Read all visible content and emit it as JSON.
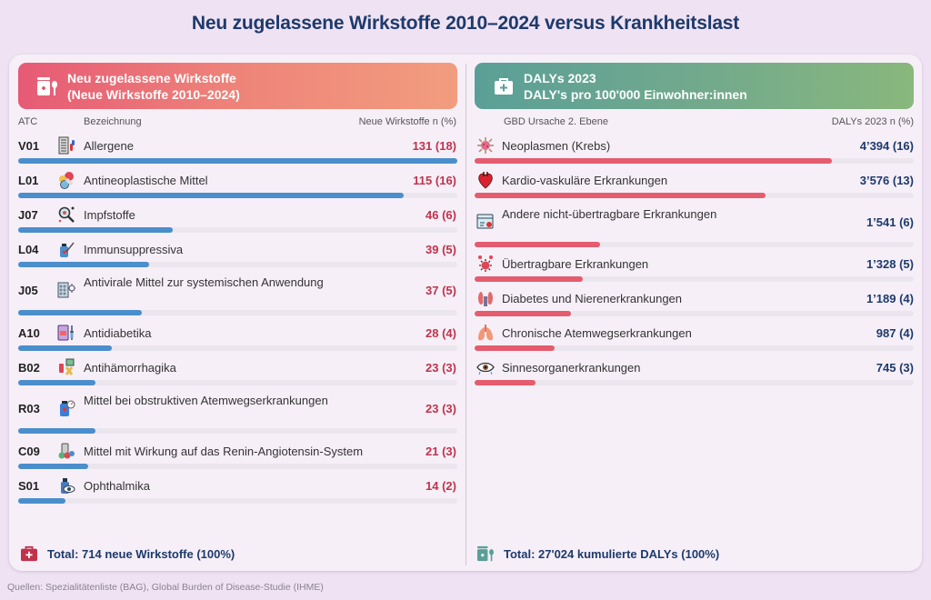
{
  "title": "Neu zugelassene Wirkstoffe 2010–2024 versus Krankheitslast",
  "colors": {
    "left_bar": "#4a8ecc",
    "right_bar": "#e45c6e",
    "left_value": "#c0334b",
    "right_value": "#1d3a6b",
    "left_header_gradient": [
      "#e65a75",
      "#f29d7f"
    ],
    "right_header_gradient": [
      "#5a9f97",
      "#89b87c"
    ]
  },
  "left_panel": {
    "header_icon": "medicine-jar-spoon-icon",
    "header_line1": "Neu zugelassene Wirkstoffe",
    "header_line2": "(Neue Wirkstoffe 2010–2024)",
    "col_code": "ATC",
    "col_name": "Bezeichnung",
    "col_value": "Neue Wirkstoffe n (%)",
    "total_icon": "first-aid-kit-icon",
    "total": "Total: 714 neue Wirkstoffe (100%)"
  },
  "right_panel": {
    "header_icon": "first-aid-kit-icon",
    "header_line1": "DALYs 2023",
    "header_line2": "DALY's pro 100'000 Einwohner:innen",
    "col_name": "GBD Ursache 2. Ebene",
    "col_value": "DALYs 2023 n (%)",
    "total_icon": "medicine-jar-spoon-icon",
    "total": "Total: 27'024 kumulierte DALYs (100%)"
  },
  "source": "Quellen: Spezialitätenliste (BAG), Global Burden of Disease-Studie (IHME)",
  "chart_data": [
    {
      "type": "bar",
      "orientation": "horizontal",
      "title": "Neu zugelassene Wirkstoffe (Neue Wirkstoffe 2010–2024)",
      "xlabel": "Neue Wirkstoffe n (%)",
      "max": 131,
      "rows": [
        {
          "code": "V01",
          "icon": "allergy-pills-icon",
          "label": "Allergene",
          "value": 131,
          "display": "131 (18)"
        },
        {
          "code": "L01",
          "icon": "capsules-icon",
          "label": "Antineoplastische Mittel",
          "value": 115,
          "display": "115 (16)"
        },
        {
          "code": "J07",
          "icon": "virus-magnifier-icon",
          "label": "Impfstoffe",
          "value": 46,
          "display": "46 (6)"
        },
        {
          "code": "L04",
          "icon": "vial-syringe-icon",
          "label": "Immunsuppressiva",
          "value": 39,
          "display": "39 (5)"
        },
        {
          "code": "J05",
          "icon": "antiviral-pills-icon",
          "label": "Antivirale Mittel zur systemischen Anwendung",
          "value": 37,
          "display": "37 (5)"
        },
        {
          "code": "A10",
          "icon": "insulin-syringe-icon",
          "label": "Antidiabetika",
          "value": 28,
          "display": "28 (4)"
        },
        {
          "code": "B02",
          "icon": "blood-bag-icon",
          "label": "Antihämorrhagika",
          "value": 23,
          "display": "23 (3)"
        },
        {
          "code": "R03",
          "icon": "inhaler-bottle-icon",
          "label": "Mittel bei obstruktiven Atemwegserkrankungen",
          "value": 23,
          "display": "23 (3)"
        },
        {
          "code": "C09",
          "icon": "medication-bottle-icon",
          "label": "Mittel mit Wirkung auf das Renin-Angiotensin-System",
          "value": 21,
          "display": "21 (3)"
        },
        {
          "code": "S01",
          "icon": "eye-drops-icon",
          "label": "Ophthalmika",
          "value": 14,
          "display": "14 (2)"
        }
      ]
    },
    {
      "type": "bar",
      "orientation": "horizontal",
      "title": "DALYs 2023 – DALY's pro 100'000 Einwohner:innen",
      "xlabel": "DALYs 2023 n (%)",
      "max": 5400,
      "rows": [
        {
          "icon": "cancer-cell-icon",
          "label": "Neoplasmen (Krebs)",
          "value": 4394,
          "display": "4’394 (16)"
        },
        {
          "icon": "heart-icon",
          "label": "Kardio-vaskuläre Erkrankungen",
          "value": 3576,
          "display": "3’576 (13)"
        },
        {
          "icon": "browser-bug-icon",
          "label": "Andere nicht-übertragbare Erkrankungen",
          "value": 1541,
          "display": "1’541 (6)"
        },
        {
          "icon": "virus-icon",
          "label": "Übertragbare Erkrankungen",
          "value": 1328,
          "display": "1’328 (5)"
        },
        {
          "icon": "kidneys-icon",
          "label": "Diabetes und Nierenerkrankungen",
          "value": 1189,
          "display": "1’189 (4)"
        },
        {
          "icon": "lungs-icon",
          "label": "Chronische Atemwegserkrankungen",
          "value": 987,
          "display": "987 (4)"
        },
        {
          "icon": "eye-icon",
          "label": "Sinnesorganerkrankungen",
          "value": 745,
          "display": "745 (3)"
        }
      ]
    }
  ]
}
